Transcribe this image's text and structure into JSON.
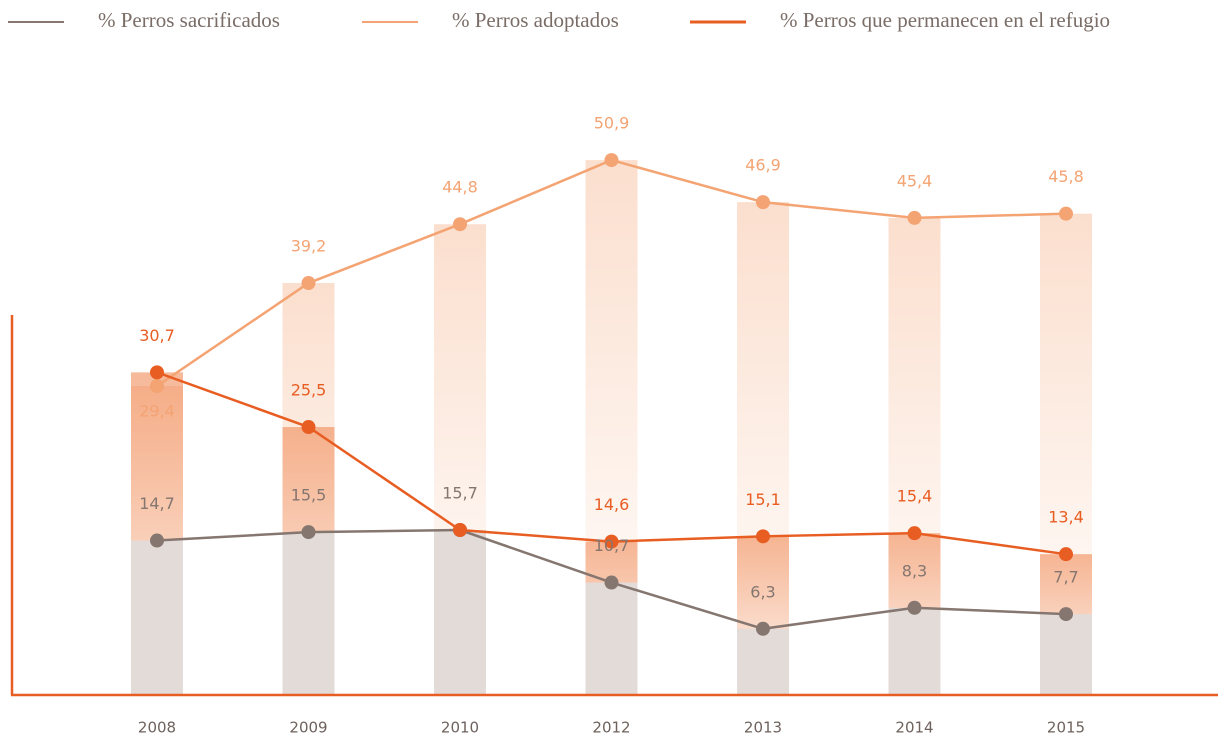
{
  "chart_data": {
    "type": "line",
    "categories": [
      "2008",
      "2009",
      "2010",
      "2012",
      "2013",
      "2014",
      "2015"
    ],
    "series": [
      {
        "name": "% Perros sacrificados",
        "color": "#857670",
        "values": [
          14.7,
          15.5,
          15.7,
          10.7,
          6.3,
          8.3,
          7.7
        ],
        "value_labels": [
          "14,7",
          "15,5",
          "15,7",
          "10,7",
          "6,3",
          "8,3",
          "7,7"
        ]
      },
      {
        "name": "% Perros adoptados",
        "color": "#f4a373",
        "values": [
          29.4,
          39.2,
          44.8,
          50.9,
          46.9,
          45.4,
          45.8
        ],
        "value_labels": [
          "29,4",
          "39,2",
          "44,8",
          "50,9",
          "46,9",
          "45,4",
          "45,8"
        ]
      },
      {
        "name": "% Perros que permanecen en el refugio",
        "color": "#e85d22",
        "values": [
          30.7,
          25.5,
          15.7,
          14.6,
          15.1,
          15.4,
          13.4
        ],
        "value_labels": [
          "30,7",
          "25,5",
          null,
          "14,6",
          "15,1",
          "15,4",
          "13,4"
        ]
      }
    ],
    "ylim": [
      0,
      55
    ]
  }
}
